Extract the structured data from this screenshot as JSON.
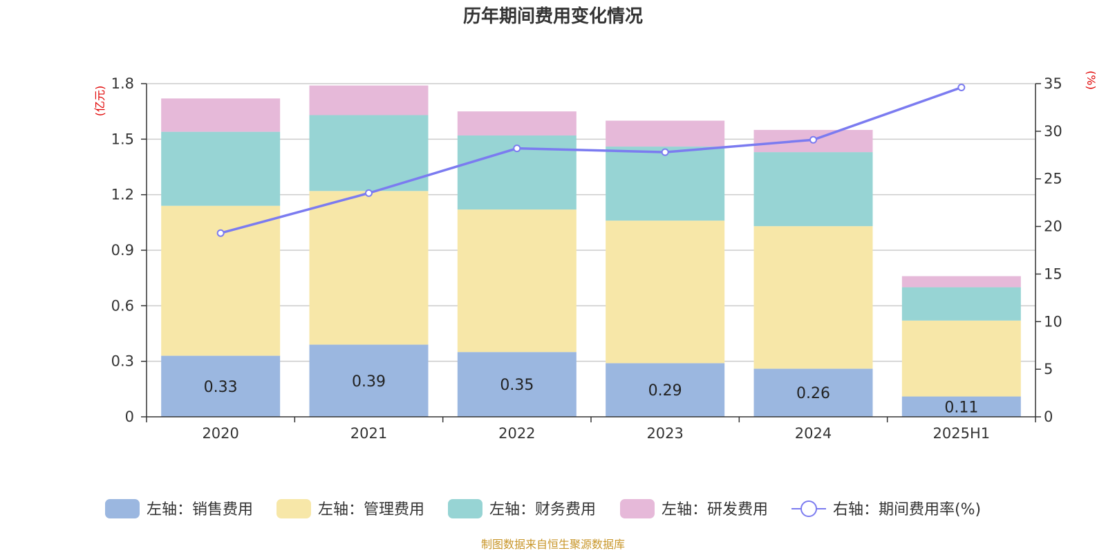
{
  "chart_data": {
    "type": "bar",
    "title": "历年期间费用变化情况",
    "categories": [
      "2020",
      "2021",
      "2022",
      "2023",
      "2024",
      "2025H1"
    ],
    "left_axis": {
      "unit": "(亿元)",
      "ylim": [
        0,
        1.8
      ],
      "ticks": [
        "0",
        "0.3",
        "0.6",
        "0.9",
        "1.2",
        "1.5",
        "1.8"
      ]
    },
    "right_axis": {
      "unit": "(%)",
      "ylim": [
        0,
        35
      ],
      "ticks": [
        "0",
        "5",
        "10",
        "15",
        "20",
        "25",
        "30",
        "35"
      ]
    },
    "series": [
      {
        "name": "左轴：销售费用",
        "type": "bar",
        "axis": "left",
        "color": "#9bb7e0",
        "values": [
          0.33,
          0.39,
          0.35,
          0.29,
          0.26,
          0.11
        ],
        "labels": [
          "0.33",
          "0.39",
          "0.35",
          "0.29",
          "0.26",
          "0.11"
        ]
      },
      {
        "name": "左轴：管理费用",
        "type": "bar",
        "axis": "left",
        "color": "#f7e7a8",
        "values": [
          0.81,
          0.83,
          0.77,
          0.77,
          0.77,
          0.41
        ]
      },
      {
        "name": "左轴：财务费用",
        "type": "bar",
        "axis": "left",
        "color": "#97d4d4",
        "values": [
          0.4,
          0.41,
          0.4,
          0.4,
          0.4,
          0.18
        ]
      },
      {
        "name": "左轴：研发费用",
        "type": "bar",
        "axis": "left",
        "color": "#e6b9d9",
        "values": [
          0.18,
          0.16,
          0.13,
          0.14,
          0.12,
          0.06
        ]
      },
      {
        "name": "右轴：期间费用率(%)",
        "type": "line",
        "axis": "right",
        "color": "#7b7bf0",
        "values": [
          19.3,
          23.5,
          28.2,
          27.8,
          29.1,
          34.6
        ]
      }
    ],
    "grid": true,
    "legend_position": "bottom"
  },
  "footer": {
    "source": "制图数据来自恒生聚源数据库"
  }
}
